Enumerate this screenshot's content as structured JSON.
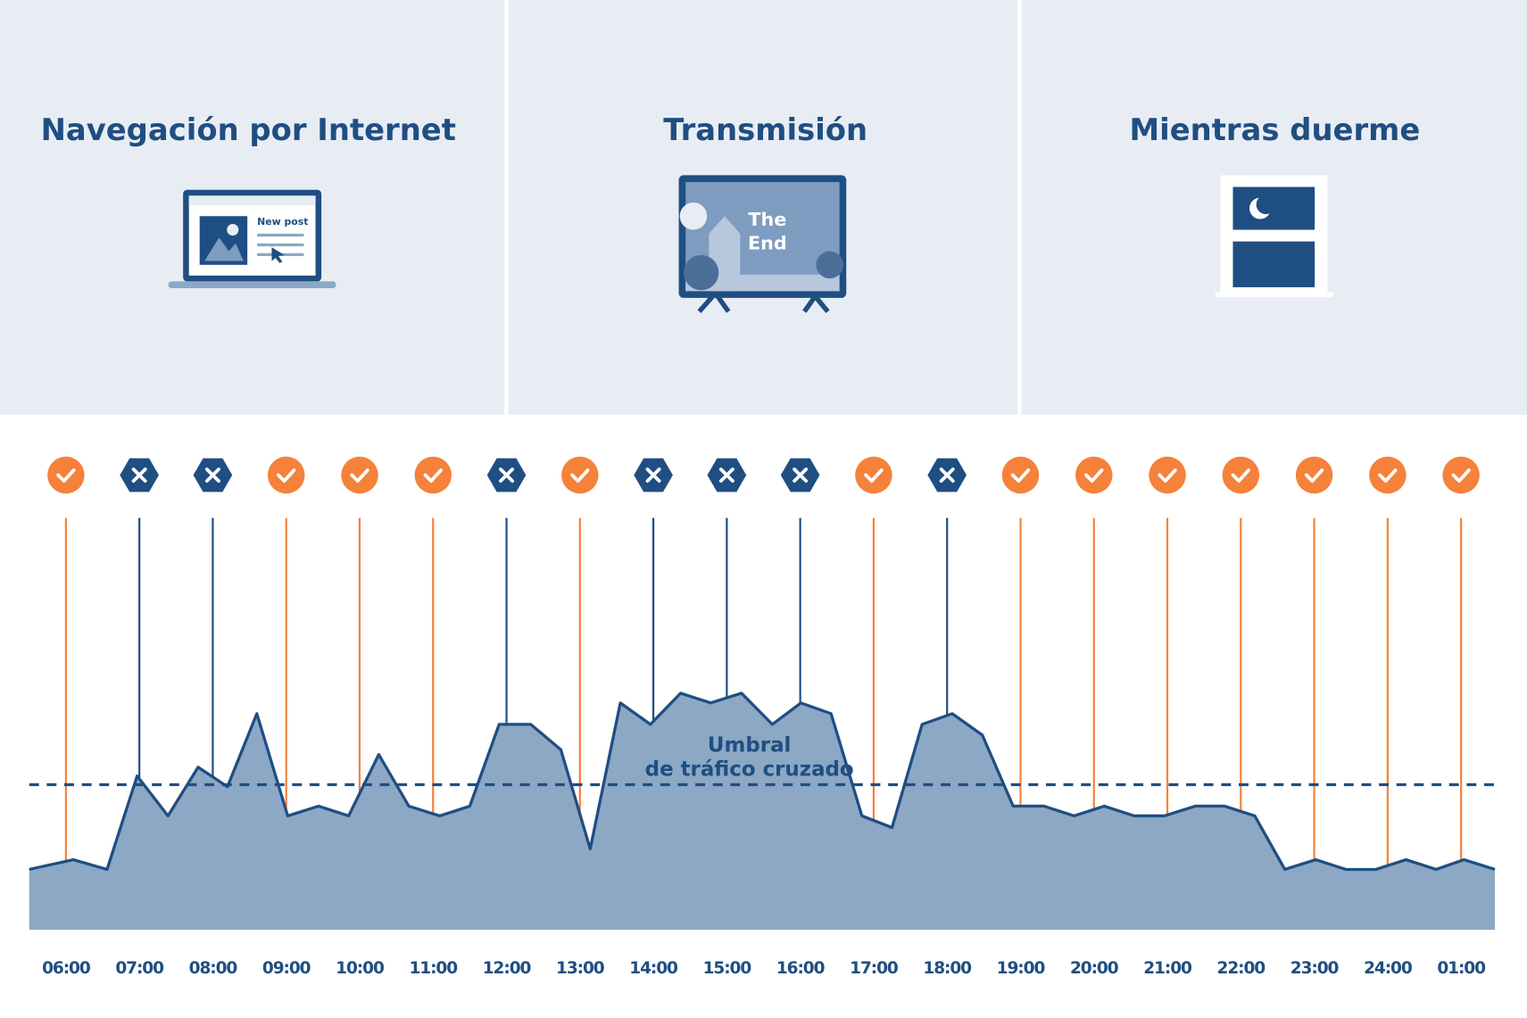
{
  "panels": [
    {
      "title": "Navegación por Internet",
      "icon_text": "New post"
    },
    {
      "title": "Transmisión",
      "icon_text": [
        "The",
        "End"
      ]
    },
    {
      "title": "Mientras duerme"
    }
  ],
  "chart_data": {
    "type": "area",
    "xlim": [
      -0.5,
      19.46
    ],
    "ylim": [
      0,
      50
    ],
    "xticks": [
      {
        "value": 0,
        "label": "06:00"
      },
      {
        "value": 1,
        "label": "07:00"
      },
      {
        "value": 2,
        "label": "08:00"
      },
      {
        "value": 3,
        "label": "09:00"
      },
      {
        "value": 4,
        "label": "10:00"
      },
      {
        "value": 5,
        "label": "11:00"
      },
      {
        "value": 6,
        "label": "12:00"
      },
      {
        "value": 7,
        "label": "13:00"
      },
      {
        "value": 8,
        "label": "14:00"
      },
      {
        "value": 9,
        "label": "15:00"
      },
      {
        "value": 10,
        "label": "16:00"
      },
      {
        "value": 11,
        "label": "17:00"
      },
      {
        "value": 12,
        "label": "18:00"
      },
      {
        "value": 13,
        "label": "19:00"
      },
      {
        "value": 14,
        "label": "20:00"
      },
      {
        "value": 15,
        "label": "21:00"
      },
      {
        "value": 16,
        "label": "22:00"
      },
      {
        "value": 17,
        "label": "23:00"
      },
      {
        "value": 18,
        "label": "24:00"
      },
      {
        "value": 19,
        "label": "01:00"
      }
    ],
    "status": [
      "pass",
      "fail",
      "fail",
      "pass",
      "pass",
      "pass",
      "fail",
      "pass",
      "fail",
      "fail",
      "fail",
      "pass",
      "fail",
      "pass",
      "pass",
      "pass",
      "pass",
      "pass",
      "pass",
      "pass"
    ],
    "status_colors": {
      "pass": "#f5813a",
      "fail": "#1f4e82"
    },
    "series": [
      {
        "color": "#8ca8c4",
        "line_color": "#1f4e82",
        "x": [
          -0.5,
          0.1,
          0.56,
          0.97,
          1.39,
          1.8,
          2.2,
          2.6,
          3.02,
          3.44,
          3.85,
          4.26,
          4.67,
          5.09,
          5.5,
          5.9,
          6.33,
          6.74,
          7.14,
          7.55,
          7.96,
          8.37,
          8.78,
          9.2,
          9.62,
          10.01,
          10.42,
          10.84,
          11.25,
          11.66,
          12.07,
          12.48,
          12.9,
          13.32,
          13.73,
          14.14,
          14.55,
          14.96,
          15.38,
          15.78,
          16.19,
          16.6,
          17.02,
          17.43,
          17.84,
          18.25,
          18.66,
          19.04,
          19.46
        ],
        "values": [
          6.2,
          7.2,
          6.2,
          15.8,
          11.7,
          16.7,
          14.7,
          22.2,
          11.7,
          12.7,
          11.7,
          18.0,
          12.7,
          11.7,
          12.7,
          21.1,
          21.1,
          18.5,
          8.3,
          23.3,
          21.1,
          24.3,
          23.3,
          24.3,
          21.1,
          23.3,
          22.2,
          11.7,
          10.5,
          21.1,
          22.2,
          20.0,
          12.7,
          12.7,
          11.7,
          12.7,
          11.7,
          11.7,
          12.7,
          12.7,
          11.7,
          6.2,
          7.2,
          6.2,
          6.2,
          7.2,
          6.2,
          7.2,
          6.2
        ]
      }
    ],
    "threshold": 14.9,
    "threshold_label": [
      "Umbral",
      "de tráfico cruzado"
    ]
  }
}
